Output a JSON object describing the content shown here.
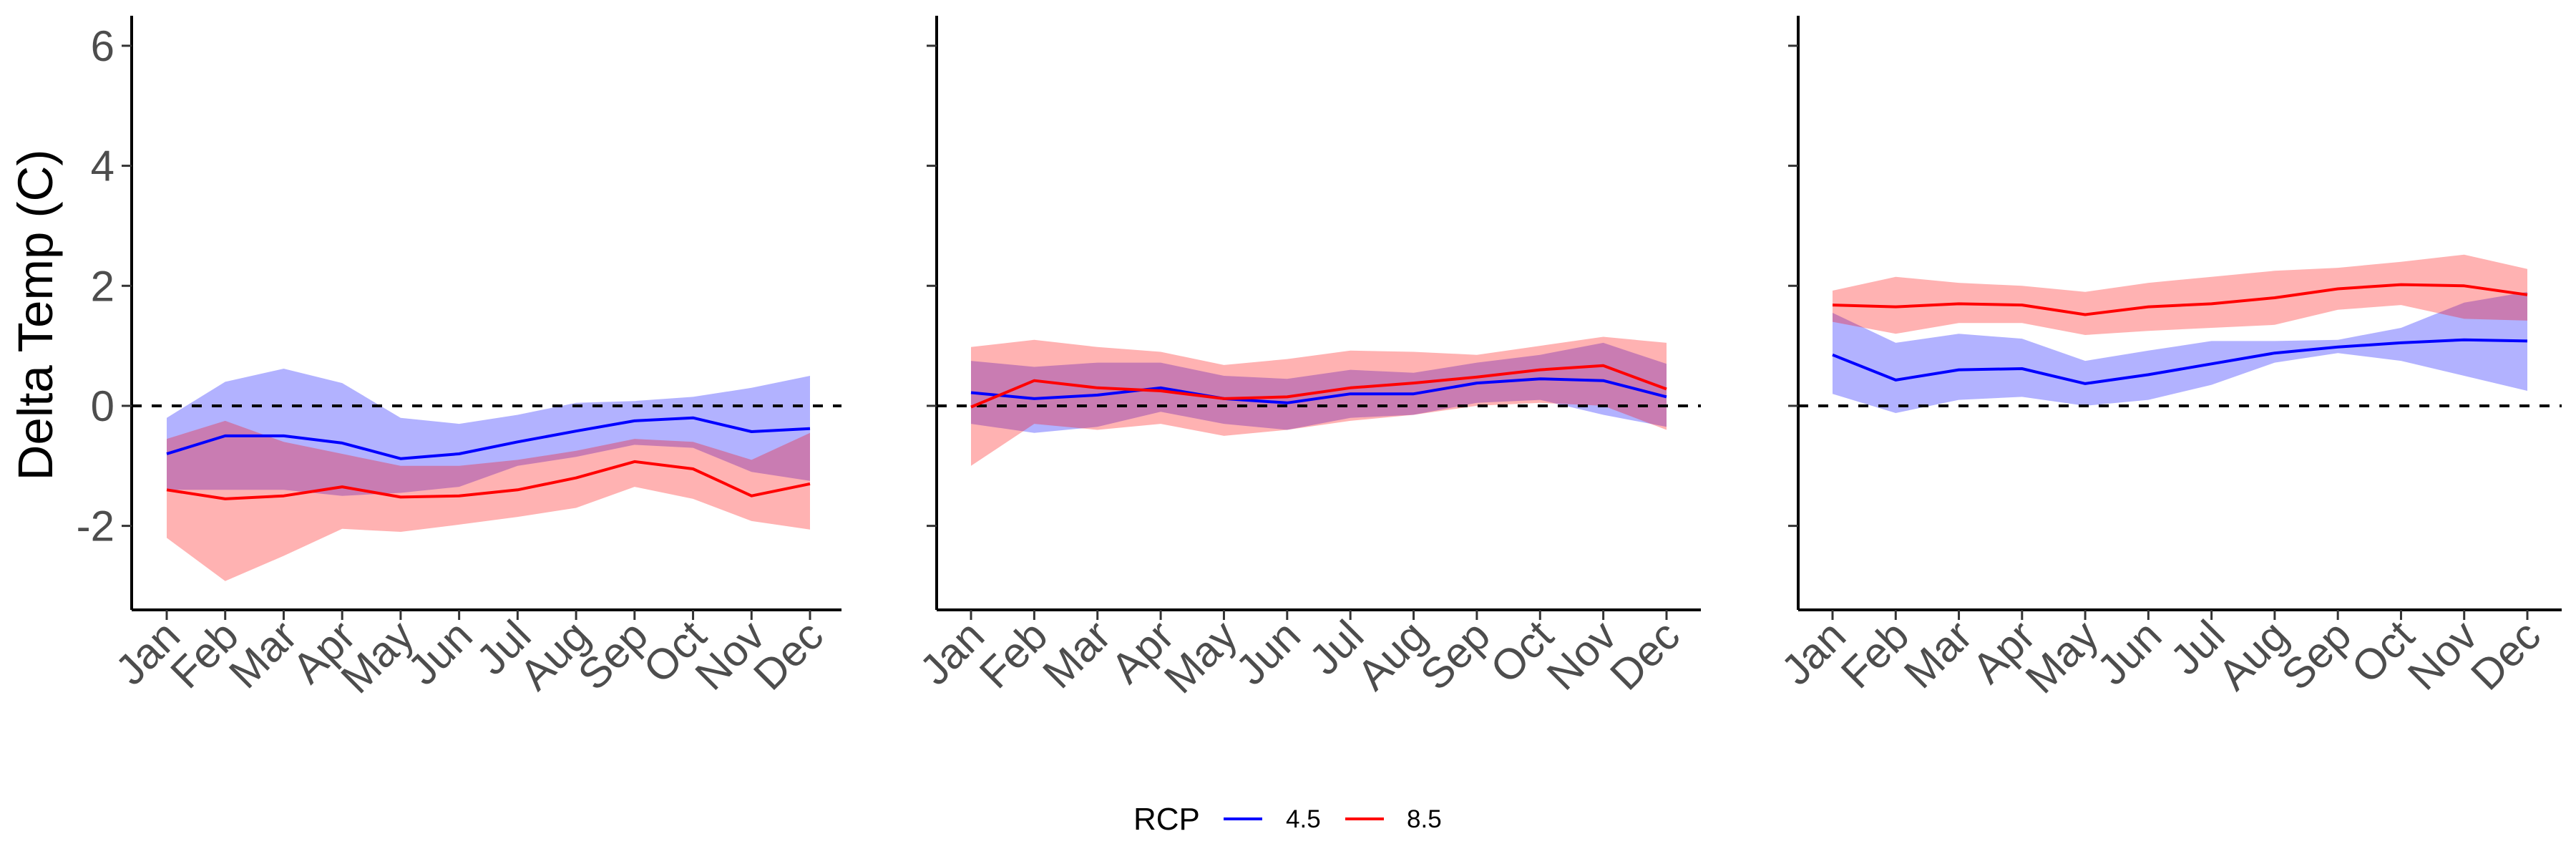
{
  "chart_data": {
    "type": "line",
    "ylabel": "Delta Temp (C)",
    "ylim": [
      -3.4,
      6.5
    ],
    "y_ticks": [
      "-2",
      "0",
      "2",
      "4",
      "6"
    ],
    "y_tick_values": [
      -2,
      0,
      2,
      4,
      6
    ],
    "categories": [
      "Jan",
      "Feb",
      "Mar",
      "Apr",
      "May",
      "Jun",
      "Jul",
      "Aug",
      "Sep",
      "Oct",
      "Nov",
      "Dec"
    ],
    "reference_line": 0,
    "grid": false,
    "legend": {
      "title": "RCP",
      "position": "bottom",
      "entries": [
        {
          "label": "4.5",
          "color": "#0000FF"
        },
        {
          "label": "8.5",
          "color": "#FF0000"
        }
      ]
    },
    "band_colors": {
      "4.5": "#B2B2FF",
      "8.5": "#FFB2B2",
      "overlap": "#B27FB2"
    },
    "panels": [
      {
        "series": [
          {
            "name": "4.5",
            "values": [
              -0.8,
              -0.5,
              -0.5,
              -0.62,
              -0.88,
              -0.8,
              -0.6,
              -0.42,
              -0.25,
              -0.2,
              -0.43,
              -0.38
            ],
            "lower": [
              -1.4,
              -1.4,
              -1.4,
              -1.5,
              -1.45,
              -1.35,
              -1.0,
              -0.85,
              -0.65,
              -0.7,
              -1.1,
              -1.25
            ],
            "upper": [
              -0.2,
              0.4,
              0.62,
              0.38,
              -0.2,
              -0.3,
              -0.15,
              0.05,
              0.08,
              0.15,
              0.3,
              0.5
            ]
          },
          {
            "name": "8.5",
            "values": [
              -1.4,
              -1.55,
              -1.5,
              -1.35,
              -1.52,
              -1.5,
              -1.4,
              -1.2,
              -0.93,
              -1.05,
              -1.5,
              -1.3
            ],
            "lower": [
              -2.2,
              -2.92,
              -2.5,
              -2.05,
              -2.1,
              -1.98,
              -1.85,
              -1.7,
              -1.35,
              -1.55,
              -1.92,
              -2.06
            ],
            "upper": [
              -0.55,
              -0.25,
              -0.6,
              -0.8,
              -1.0,
              -1.0,
              -0.9,
              -0.75,
              -0.55,
              -0.6,
              -0.9,
              -0.45
            ]
          }
        ]
      },
      {
        "series": [
          {
            "name": "4.5",
            "values": [
              0.22,
              0.12,
              0.18,
              0.3,
              0.12,
              0.05,
              0.2,
              0.2,
              0.38,
              0.45,
              0.42,
              0.15
            ],
            "lower": [
              -0.3,
              -0.45,
              -0.35,
              -0.1,
              -0.3,
              -0.4,
              -0.2,
              -0.15,
              0.05,
              0.1,
              -0.15,
              -0.35
            ],
            "upper": [
              0.75,
              0.65,
              0.72,
              0.72,
              0.5,
              0.45,
              0.6,
              0.55,
              0.72,
              0.85,
              1.05,
              0.7
            ]
          },
          {
            "name": "8.5",
            "values": [
              -0.02,
              0.42,
              0.3,
              0.25,
              0.12,
              0.15,
              0.3,
              0.38,
              0.48,
              0.6,
              0.67,
              0.28
            ],
            "lower": [
              -1.0,
              -0.3,
              -0.4,
              -0.3,
              -0.5,
              -0.4,
              -0.25,
              -0.15,
              0.0,
              0.05,
              0.0,
              -0.4
            ],
            "upper": [
              0.98,
              1.1,
              0.98,
              0.9,
              0.68,
              0.78,
              0.92,
              0.9,
              0.85,
              1.0,
              1.15,
              1.05
            ]
          }
        ]
      },
      {
        "series": [
          {
            "name": "4.5",
            "values": [
              0.85,
              0.43,
              0.6,
              0.62,
              0.37,
              0.52,
              0.7,
              0.88,
              0.98,
              1.05,
              1.1,
              1.08
            ],
            "lower": [
              0.2,
              -0.12,
              0.1,
              0.15,
              0.0,
              0.1,
              0.35,
              0.72,
              0.88,
              0.75,
              0.5,
              0.25
            ],
            "upper": [
              1.55,
              1.05,
              1.2,
              1.12,
              0.75,
              0.92,
              1.08,
              1.08,
              1.1,
              1.3,
              1.72,
              1.9
            ]
          },
          {
            "name": "8.5",
            "values": [
              1.68,
              1.65,
              1.7,
              1.68,
              1.52,
              1.65,
              1.7,
              1.8,
              1.95,
              2.02,
              2.0,
              1.85
            ],
            "lower": [
              1.4,
              1.2,
              1.38,
              1.38,
              1.18,
              1.25,
              1.3,
              1.35,
              1.6,
              1.68,
              1.45,
              1.42
            ],
            "upper": [
              1.92,
              2.15,
              2.05,
              2.0,
              1.9,
              2.05,
              2.15,
              2.25,
              2.3,
              2.4,
              2.52,
              2.28
            ]
          }
        ]
      }
    ]
  }
}
